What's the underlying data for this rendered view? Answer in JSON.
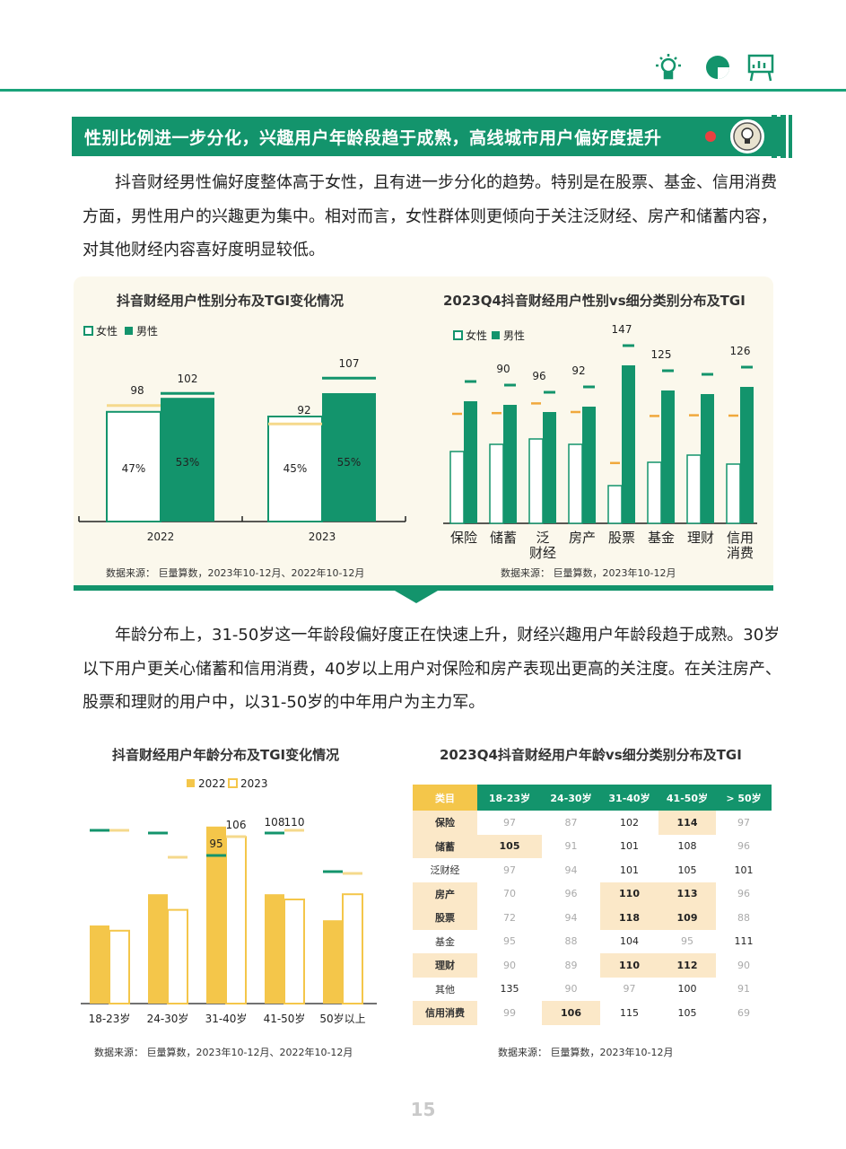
{
  "banner": {
    "title": "性别比例进一步分化，兴趣用户年龄段趋于成熟，高线城市用户偏好度提升"
  },
  "paragraphs": {
    "p1": "抖音财经男性偏好度整体高于女性，且有进一步分化的趋势。特别是在股票、基金、信用消费方面，男性用户的兴趣更为集中。相对而言，女性群体则更倾向于关注泛财经、房产和储蓄内容，对其他财经内容喜好度明显较低。",
    "p2": "年龄分布上，31-50岁这一年龄段偏好度正在快速上升，财经兴趣用户年龄段趋于成熟。30岁以下用户更关心储蓄和信用消费，40岁以上用户对保险和房产表现出更高的关注度。在关注房产、股票和理财的用户中，以31-50岁的中年用户为主力军。"
  },
  "colors": {
    "green": "#13946c",
    "gold": "#f4c64a",
    "tgiOrange": "#f0a83c",
    "tgiGreen": "#13946c",
    "tgiLightGold": "#f5d98c"
  },
  "chart_data": [
    {
      "type": "bar",
      "title": "抖音财经用户性别分布及TGI变化情况",
      "legend": [
        "女性",
        "男性"
      ],
      "categories": [
        "2022",
        "2023"
      ],
      "series": [
        {
          "name": "女性",
          "values": [
            47,
            45
          ],
          "labels": [
            "47%",
            "45%"
          ]
        },
        {
          "name": "男性",
          "values": [
            53,
            55
          ],
          "labels": [
            "53%",
            "55%"
          ]
        }
      ],
      "tgi": {
        "女性": [
          98,
          92
        ],
        "男性": [
          102,
          107
        ]
      },
      "source": "数据来源：  巨量算数，2023年10-12月、2022年10-12月"
    },
    {
      "type": "bar",
      "title": "2023Q4抖音财经用户性别vs细分类别分布及TGI",
      "legend": [
        "女性",
        "男性"
      ],
      "categories": [
        "保险",
        "储蓄",
        "泛财经",
        "房产",
        "股票",
        "基金",
        "理财",
        "信用消费"
      ],
      "category_lines": [
        [
          "保险"
        ],
        [
          "储蓄"
        ],
        [
          "泛",
          "财经"
        ],
        [
          "房产"
        ],
        [
          "股票"
        ],
        [
          "基金"
        ],
        [
          "理财"
        ],
        [
          "信用",
          "消费"
        ]
      ],
      "series": [
        {
          "name": "女性",
          "values": [
            40,
            44,
            47,
            44,
            21,
            34,
            38,
            33
          ]
        },
        {
          "name": "男性",
          "values": [
            68,
            66,
            62,
            65,
            88,
            74,
            72,
            76
          ]
        }
      ],
      "tgi_labels": [
        "",
        "90",
        "96",
        "92",
        "147",
        "125",
        "",
        "126"
      ],
      "source": "数据来源：  巨量算数，2023年10-12月"
    },
    {
      "type": "bar",
      "title": "抖音财经用户年龄分布及TGI变化情况",
      "legend": [
        "2022",
        "2023"
      ],
      "categories": [
        "18-23岁",
        "24-30岁",
        "31-40岁",
        "41-50岁",
        "50岁以上"
      ],
      "series": [
        {
          "name": "2022",
          "values": [
            30,
            42,
            68,
            42,
            32
          ]
        },
        {
          "name": "2023",
          "values": [
            28,
            36,
            64,
            40,
            42
          ]
        }
      ],
      "tgi_labels": [
        "",
        "",
        "95 106",
        "108 110",
        ""
      ],
      "source": "数据来源：  巨量算数，2023年10-12月、2022年10-12月"
    },
    {
      "type": "table",
      "title": "2023Q4抖音财经用户年龄vs细分类别分布及TGI",
      "columns": [
        "类目",
        "18-23岁",
        "24-30岁",
        "31-40岁",
        "41-50岁",
        "> 50岁"
      ],
      "rows": [
        {
          "cat": "保险",
          "vals": [
            "97",
            "87",
            "102",
            "114",
            "97"
          ]
        },
        {
          "cat": "储蓄",
          "vals": [
            "105",
            "91",
            "101",
            "108",
            "96"
          ]
        },
        {
          "cat": "泛财经",
          "vals": [
            "97",
            "94",
            "101",
            "105",
            "101"
          ]
        },
        {
          "cat": "房产",
          "vals": [
            "70",
            "96",
            "110",
            "113",
            "96"
          ]
        },
        {
          "cat": "股票",
          "vals": [
            "72",
            "94",
            "118",
            "109",
            "88"
          ]
        },
        {
          "cat": "基金",
          "vals": [
            "95",
            "88",
            "104",
            "95",
            "111"
          ]
        },
        {
          "cat": "理财",
          "vals": [
            "90",
            "89",
            "110",
            "112",
            "90"
          ]
        },
        {
          "cat": "其他",
          "vals": [
            "135",
            "90",
            "97",
            "100",
            "91"
          ]
        },
        {
          "cat": "信用消费",
          "vals": [
            "99",
            "106",
            "115",
            "105",
            "69"
          ]
        }
      ],
      "source": "数据来源：  巨量算数，2023年10-12月"
    }
  ],
  "page": {
    "number": "15"
  }
}
